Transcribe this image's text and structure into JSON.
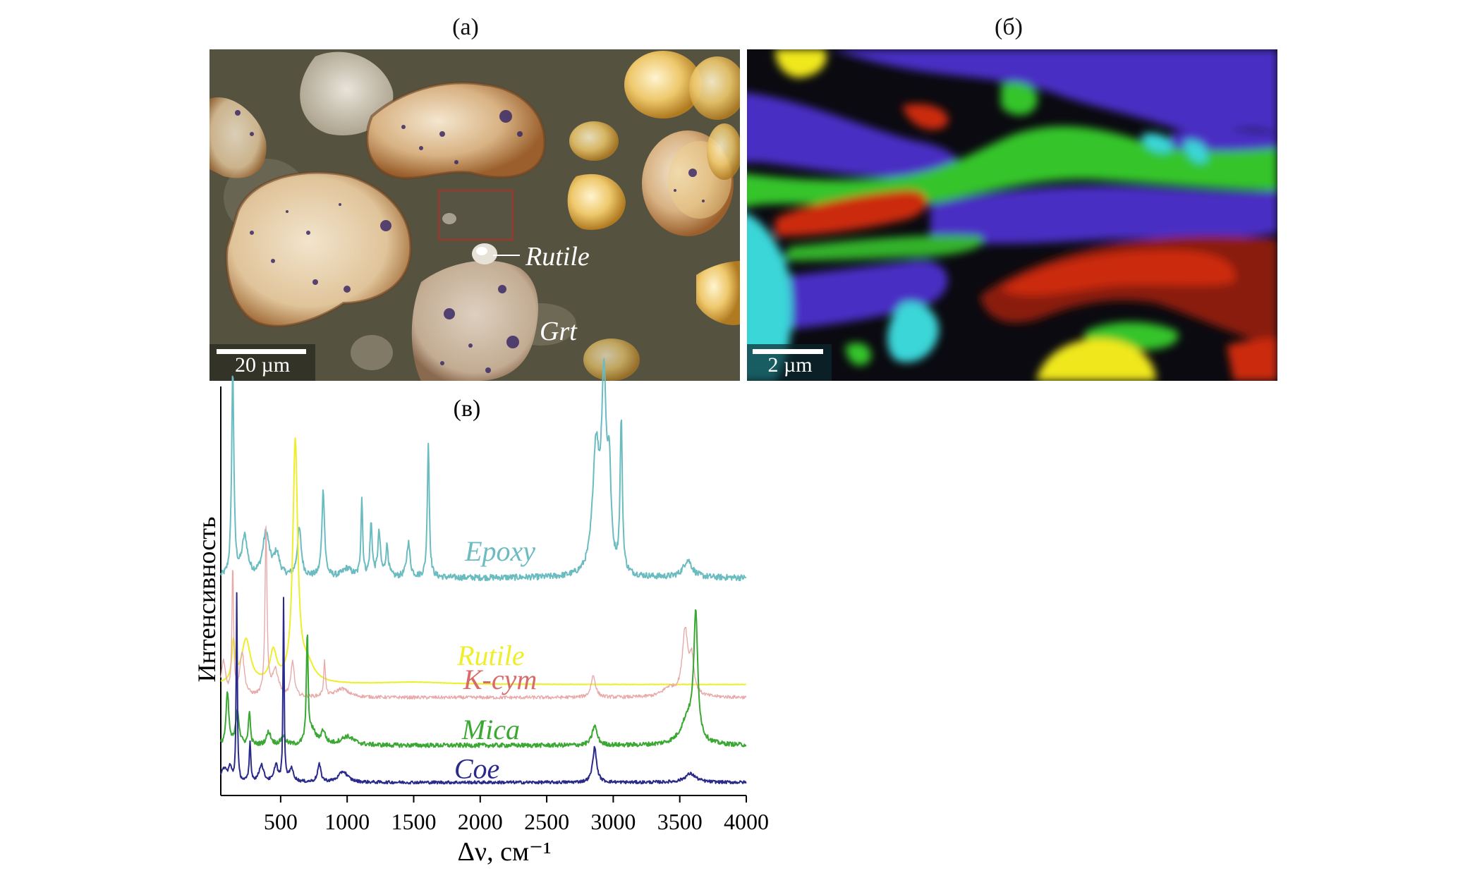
{
  "figure": {
    "panel_a": {
      "label": "(a)",
      "scale_bar": "20 µm",
      "annotations": {
        "rutile": "Rutile",
        "grt": "Grt"
      }
    },
    "panel_b": {
      "label": "(б)",
      "scale_bar": "2 µm"
    },
    "panel_c": {
      "label": "(в)"
    }
  },
  "colors": {
    "epoxy": "#6bbcc0",
    "rutile": "#eeee2a",
    "kcym": "#e8a9a9",
    "kcym_label": "#d86a6a",
    "mica": "#3aa832",
    "coe": "#2a2a8a",
    "map_blue": "#4a2ec4",
    "map_green": "#36c42c",
    "map_red": "#cc2a10",
    "map_cyan": "#3ad6d8",
    "map_yellow": "#f0e81a"
  },
  "chart_data": {
    "type": "line",
    "xlabel": "Δν, см⁻¹",
    "ylabel": "Интенсивность",
    "xlim": [
      50,
      4000
    ],
    "xticks": [
      500,
      1000,
      1500,
      2000,
      2500,
      3000,
      3500,
      4000
    ],
    "xtick_labels": [
      "500",
      "1000",
      "1500",
      "2000",
      "2500",
      "3000",
      "3500",
      "4000"
    ],
    "grid": false,
    "series": [
      {
        "name": "Epoxy",
        "baseline": 0.5,
        "noise": 0.007,
        "peaks": [
          [
            140,
            0.47,
            10
          ],
          [
            230,
            0.09,
            25
          ],
          [
            390,
            0.1,
            30
          ],
          [
            470,
            0.05,
            25
          ],
          [
            640,
            0.11,
            18
          ],
          [
            820,
            0.2,
            12
          ],
          [
            1000,
            0.02,
            40
          ],
          [
            1110,
            0.18,
            8
          ],
          [
            1180,
            0.12,
            10
          ],
          [
            1240,
            0.1,
            12
          ],
          [
            1300,
            0.07,
            12
          ],
          [
            1460,
            0.08,
            15
          ],
          [
            1610,
            0.31,
            9
          ],
          [
            2870,
            0.28,
            30
          ],
          [
            2930,
            0.42,
            22
          ],
          [
            2970,
            0.2,
            15
          ],
          [
            3060,
            0.35,
            10
          ],
          [
            3560,
            0.04,
            40
          ]
        ]
      },
      {
        "name": "Rutile",
        "baseline": 0.255,
        "noise": 0.0005,
        "peaks": [
          [
            145,
            0.09,
            14
          ],
          [
            240,
            0.1,
            40
          ],
          [
            445,
            0.07,
            30
          ],
          [
            610,
            0.55,
            22
          ],
          [
            700,
            0.04,
            60
          ],
          [
            1500,
            0.005,
            300
          ]
        ]
      },
      {
        "name": "K-cym",
        "baseline": 0.225,
        "noise": 0.004,
        "peaks": [
          [
            70,
            0.08,
            20
          ],
          [
            140,
            0.3,
            7
          ],
          [
            210,
            0.1,
            20
          ],
          [
            390,
            0.38,
            9
          ],
          [
            460,
            0.06,
            30
          ],
          [
            590,
            0.08,
            15
          ],
          [
            830,
            0.08,
            8
          ],
          [
            960,
            0.02,
            60
          ],
          [
            2850,
            0.05,
            20
          ],
          [
            3420,
            0.02,
            60
          ],
          [
            3540,
            0.15,
            25
          ],
          [
            3590,
            0.08,
            20
          ]
        ]
      },
      {
        "name": "Mica",
        "baseline": 0.115,
        "noise": 0.005,
        "peaks": [
          [
            100,
            0.12,
            12
          ],
          [
            175,
            0.08,
            15
          ],
          [
            265,
            0.08,
            8
          ],
          [
            410,
            0.03,
            20
          ],
          [
            520,
            0.02,
            20
          ],
          [
            700,
            0.25,
            8
          ],
          [
            740,
            0.03,
            30
          ],
          [
            820,
            0.03,
            20
          ],
          [
            1000,
            0.02,
            60
          ],
          [
            2860,
            0.045,
            22
          ],
          [
            3560,
            0.06,
            60
          ],
          [
            3620,
            0.28,
            18
          ]
        ]
      },
      {
        "name": "Coe",
        "baseline": 0.03,
        "noise": 0.0035,
        "peaks": [
          [
            75,
            0.03,
            25
          ],
          [
            120,
            0.03,
            15
          ],
          [
            170,
            0.43,
            5
          ],
          [
            270,
            0.09,
            7
          ],
          [
            355,
            0.04,
            20
          ],
          [
            465,
            0.04,
            15
          ],
          [
            522,
            0.42,
            5
          ],
          [
            580,
            0.03,
            20
          ],
          [
            790,
            0.04,
            15
          ],
          [
            970,
            0.025,
            40
          ],
          [
            2860,
            0.08,
            18
          ],
          [
            3580,
            0.02,
            50
          ]
        ]
      }
    ]
  }
}
